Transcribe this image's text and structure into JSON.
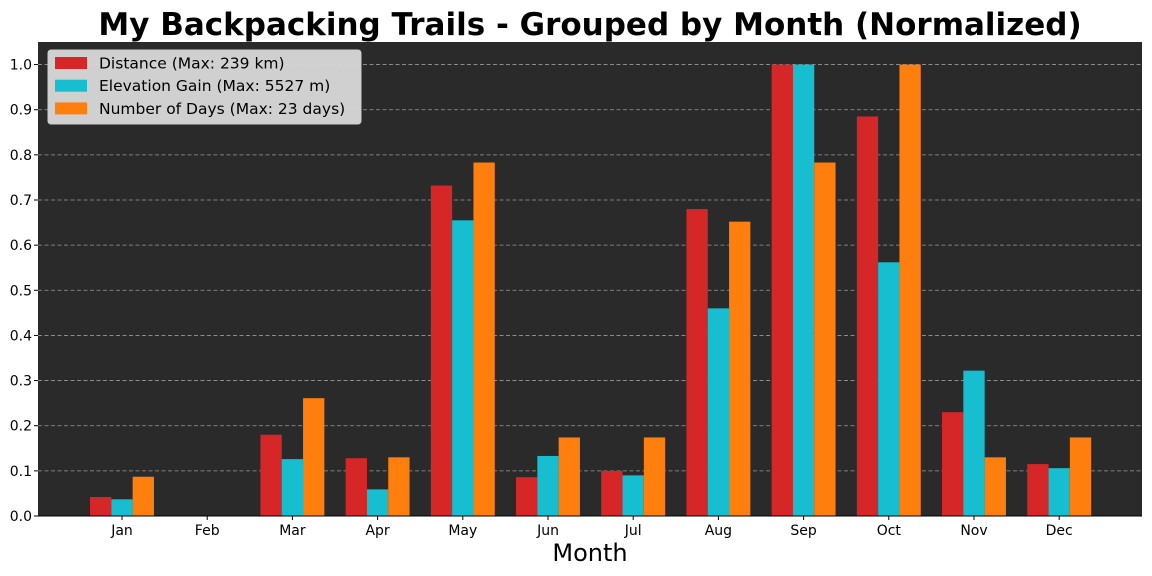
{
  "chart_data": {
    "type": "bar",
    "title": "My Backpacking Trails - Grouped by Month (Normalized)",
    "xlabel": "Month",
    "ylabel": "",
    "ylim": [
      0,
      1.05
    ],
    "yticks": [
      "0.0",
      "0.1",
      "0.2",
      "0.3",
      "0.4",
      "0.5",
      "0.6",
      "0.7",
      "0.8",
      "0.9",
      "1.0"
    ],
    "grid": "horizontal dashed",
    "legend_position": "top-left",
    "categories": [
      "Jan",
      "Feb",
      "Mar",
      "Apr",
      "May",
      "Jun",
      "Jul",
      "Aug",
      "Sep",
      "Oct",
      "Nov",
      "Dec"
    ],
    "series": [
      {
        "name": "Distance (Max: 239 km)",
        "color": "#d62728",
        "values": [
          0.042,
          0.0,
          0.18,
          0.128,
          0.732,
          0.086,
          0.1,
          0.68,
          1.0,
          0.885,
          0.23,
          0.115
        ]
      },
      {
        "name": "Elevation Gain (Max: 5527 m)",
        "color": "#17becf",
        "values": [
          0.037,
          0.0,
          0.126,
          0.059,
          0.655,
          0.133,
          0.09,
          0.46,
          1.0,
          0.562,
          0.322,
          0.106
        ]
      },
      {
        "name": "Number of Days (Max: 23 days)",
        "color": "#ff7f0e",
        "values": [
          0.087,
          0.0,
          0.261,
          0.13,
          0.783,
          0.174,
          0.174,
          0.652,
          0.783,
          1.0,
          0.13,
          0.174
        ]
      }
    ],
    "colors": {
      "plot_background": "#2a2a2a",
      "grid": "#9a9a9a",
      "legend_background": "#d9d9d9"
    }
  }
}
